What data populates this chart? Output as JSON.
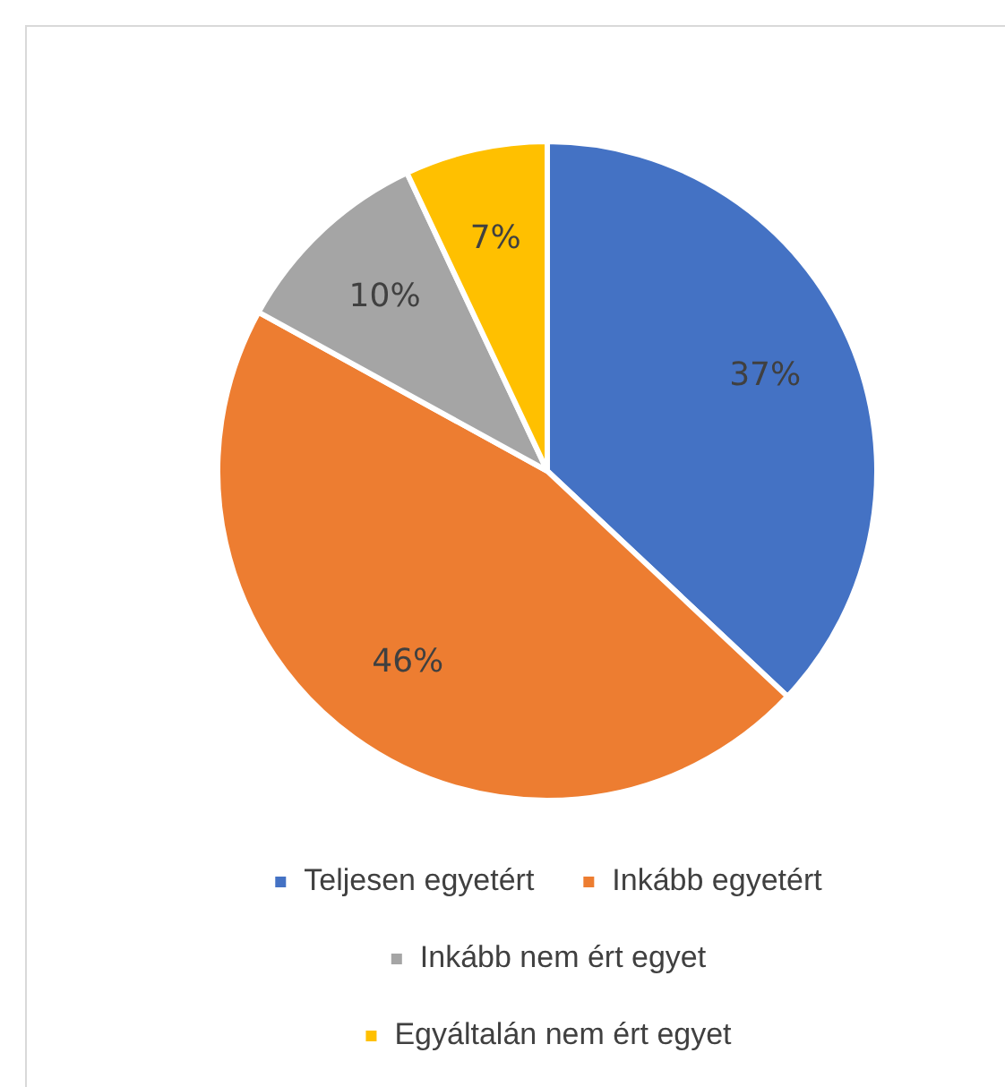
{
  "chart_data": {
    "type": "pie",
    "categories": [
      "Teljesen egyetért",
      "Inkább egyetért",
      "Inkább nem ért egyet",
      "Egyáltalán nem ért egyet"
    ],
    "values": [
      37,
      46,
      10,
      7
    ],
    "colors": [
      "#4472c4",
      "#ed7d31",
      "#a5a5a5",
      "#ffc000"
    ],
    "value_labels": [
      "37%",
      "46%",
      "10%",
      "7%"
    ],
    "legend": "bottom"
  }
}
